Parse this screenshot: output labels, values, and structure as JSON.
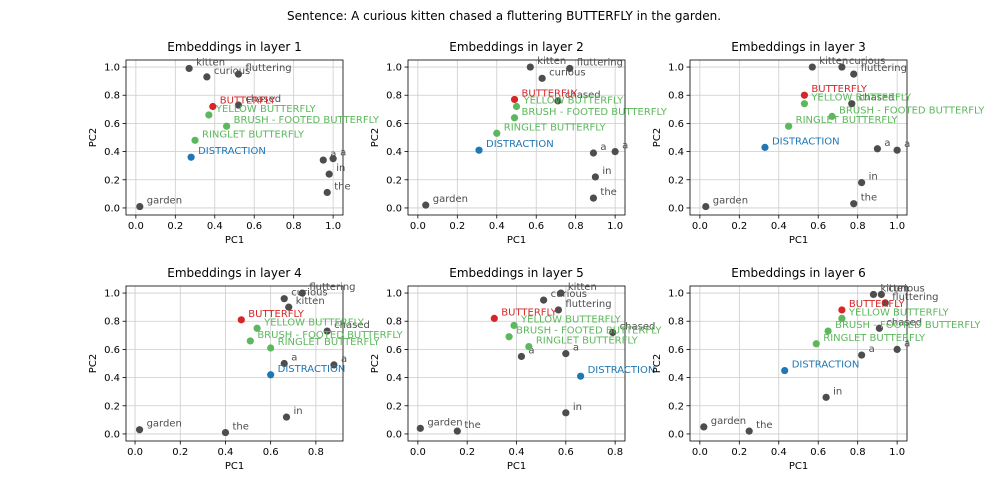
{
  "suptitle": "Sentence: A curious kitten chased a fluttering BUTTERFLY in the garden.",
  "colors": {
    "token": "#4d4d4d",
    "target": "#d62728",
    "related": "#5cb85c",
    "distractor": "#1f77b4",
    "grid": "#cccccc"
  },
  "chart_data": [
    {
      "type": "scatter",
      "title": "Embeddings in layer 1",
      "xlabel": "PC1",
      "ylabel": "PC2",
      "xticks": [
        "0.0",
        "0.2",
        "0.4",
        "0.6",
        "0.8",
        "1.0"
      ],
      "yticks": [
        "0.0",
        "0.2",
        "0.4",
        "0.6",
        "0.8",
        "1.0"
      ],
      "xlim": [
        -0.05,
        1.05
      ],
      "ylim": [
        -0.05,
        1.05
      ],
      "grid": true,
      "points": [
        {
          "label": "garden",
          "x": 0.02,
          "y": 0.01,
          "group": "token"
        },
        {
          "label": "kitten",
          "x": 0.27,
          "y": 0.99,
          "group": "token"
        },
        {
          "label": "curious",
          "x": 0.36,
          "y": 0.93,
          "group": "token"
        },
        {
          "label": "fluttering",
          "x": 0.52,
          "y": 0.95,
          "group": "token"
        },
        {
          "label": "chased",
          "x": 0.52,
          "y": 0.73,
          "group": "token"
        },
        {
          "label": "a",
          "x": 0.95,
          "y": 0.34,
          "group": "token"
        },
        {
          "label": "a",
          "x": 1.0,
          "y": 0.35,
          "group": "token"
        },
        {
          "label": "in",
          "x": 0.98,
          "y": 0.24,
          "group": "token"
        },
        {
          "label": "the",
          "x": 0.97,
          "y": 0.11,
          "group": "token"
        },
        {
          "label": "BUTTERFLY",
          "x": 0.39,
          "y": 0.72,
          "group": "target"
        },
        {
          "label": "YELLOW BUTTERFLY",
          "x": 0.37,
          "y": 0.66,
          "group": "related"
        },
        {
          "label": "BRUSH - FOOTED BUTTERFLY",
          "x": 0.46,
          "y": 0.58,
          "group": "related"
        },
        {
          "label": "RINGLET BUTTERFLY",
          "x": 0.3,
          "y": 0.48,
          "group": "related"
        },
        {
          "label": "DISTRACTION",
          "x": 0.28,
          "y": 0.36,
          "group": "distractor"
        }
      ]
    },
    {
      "type": "scatter",
      "title": "Embeddings in layer 2",
      "xlabel": "PC1",
      "ylabel": "PC2",
      "xticks": [
        "0.0",
        "0.2",
        "0.4",
        "0.6",
        "0.8",
        "1.0"
      ],
      "yticks": [
        "0.0",
        "0.2",
        "0.4",
        "0.6",
        "0.8",
        "1.0"
      ],
      "xlim": [
        -0.05,
        1.05
      ],
      "ylim": [
        -0.05,
        1.05
      ],
      "grid": true,
      "points": [
        {
          "label": "garden",
          "x": 0.04,
          "y": 0.02,
          "group": "token"
        },
        {
          "label": "kitten",
          "x": 0.57,
          "y": 1.0,
          "group": "token"
        },
        {
          "label": "fluttering",
          "x": 0.77,
          "y": 0.99,
          "group": "token"
        },
        {
          "label": "curious",
          "x": 0.63,
          "y": 0.92,
          "group": "token"
        },
        {
          "label": "chased",
          "x": 0.71,
          "y": 0.76,
          "group": "token"
        },
        {
          "label": "a",
          "x": 0.89,
          "y": 0.39,
          "group": "token"
        },
        {
          "label": "a",
          "x": 1.0,
          "y": 0.4,
          "group": "token"
        },
        {
          "label": "in",
          "x": 0.9,
          "y": 0.22,
          "group": "token"
        },
        {
          "label": "the",
          "x": 0.89,
          "y": 0.07,
          "group": "token"
        },
        {
          "label": "BUTTERFLY",
          "x": 0.49,
          "y": 0.77,
          "group": "target"
        },
        {
          "label": "YELLOW BUTTERFLY",
          "x": 0.5,
          "y": 0.72,
          "group": "related"
        },
        {
          "label": "BRUSH - FOOTED BUTTERFLY",
          "x": 0.49,
          "y": 0.64,
          "group": "related"
        },
        {
          "label": "RINGLET BUTTERFLY",
          "x": 0.4,
          "y": 0.53,
          "group": "related"
        },
        {
          "label": "DISTRACTION",
          "x": 0.31,
          "y": 0.41,
          "group": "distractor"
        }
      ]
    },
    {
      "type": "scatter",
      "title": "Embeddings in layer 3",
      "xlabel": "PC1",
      "ylabel": "PC2",
      "xticks": [
        "0.0",
        "0.2",
        "0.4",
        "0.6",
        "0.8",
        "1.0"
      ],
      "yticks": [
        "0.0",
        "0.2",
        "0.4",
        "0.6",
        "0.8",
        "1.0"
      ],
      "xlim": [
        -0.05,
        1.05
      ],
      "ylim": [
        -0.05,
        1.05
      ],
      "grid": true,
      "points": [
        {
          "label": "garden",
          "x": 0.03,
          "y": 0.01,
          "group": "token"
        },
        {
          "label": "kitten",
          "x": 0.57,
          "y": 1.0,
          "group": "token"
        },
        {
          "label": "curious",
          "x": 0.72,
          "y": 1.0,
          "group": "token"
        },
        {
          "label": "fluttering",
          "x": 0.78,
          "y": 0.95,
          "group": "token"
        },
        {
          "label": "chased",
          "x": 0.77,
          "y": 0.74,
          "group": "token"
        },
        {
          "label": "a",
          "x": 0.9,
          "y": 0.42,
          "group": "token"
        },
        {
          "label": "a",
          "x": 1.0,
          "y": 0.41,
          "group": "token"
        },
        {
          "label": "in",
          "x": 0.82,
          "y": 0.18,
          "group": "token"
        },
        {
          "label": "the",
          "x": 0.78,
          "y": 0.03,
          "group": "token"
        },
        {
          "label": "BUTTERFLY",
          "x": 0.53,
          "y": 0.8,
          "group": "target"
        },
        {
          "label": "YELLOW BUTTERFLY",
          "x": 0.53,
          "y": 0.74,
          "group": "related"
        },
        {
          "label": "BRUSH - FOOTED BUTTERFLY",
          "x": 0.67,
          "y": 0.65,
          "group": "related"
        },
        {
          "label": "RINGLET BUTTERFLY",
          "x": 0.45,
          "y": 0.58,
          "group": "related"
        },
        {
          "label": "DISTRACTION",
          "x": 0.33,
          "y": 0.43,
          "group": "distractor"
        }
      ]
    },
    {
      "type": "scatter",
      "title": "Embeddings in layer 4",
      "xlabel": "PC1",
      "ylabel": "PC2",
      "xticks": [
        "0.0",
        "0.2",
        "0.4",
        "0.6",
        "0.8"
      ],
      "yticks": [
        "0.0",
        "0.2",
        "0.4",
        "0.6",
        "0.8",
        "1.0"
      ],
      "xlim": [
        -0.04,
        0.92
      ],
      "ylim": [
        -0.05,
        1.05
      ],
      "grid": true,
      "points": [
        {
          "label": "garden",
          "x": 0.02,
          "y": 0.03,
          "group": "token"
        },
        {
          "label": "the",
          "x": 0.4,
          "y": 0.01,
          "group": "token"
        },
        {
          "label": "in",
          "x": 0.67,
          "y": 0.12,
          "group": "token"
        },
        {
          "label": "fluttering",
          "x": 0.74,
          "y": 1.0,
          "group": "token"
        },
        {
          "label": "curious",
          "x": 0.66,
          "y": 0.96,
          "group": "token"
        },
        {
          "label": "kitten",
          "x": 0.68,
          "y": 0.9,
          "group": "token"
        },
        {
          "label": "chased",
          "x": 0.85,
          "y": 0.73,
          "group": "token"
        },
        {
          "label": "a",
          "x": 0.66,
          "y": 0.5,
          "group": "token"
        },
        {
          "label": "a",
          "x": 0.88,
          "y": 0.49,
          "group": "token"
        },
        {
          "label": "BUTTERFLY",
          "x": 0.47,
          "y": 0.81,
          "group": "target"
        },
        {
          "label": "YELLOW BUTTERFLY",
          "x": 0.54,
          "y": 0.75,
          "group": "related"
        },
        {
          "label": "BRUSH - FOOTED BUTTERFLY",
          "x": 0.51,
          "y": 0.66,
          "group": "related"
        },
        {
          "label": "RINGLET BUTTERFLY",
          "x": 0.6,
          "y": 0.61,
          "group": "related"
        },
        {
          "label": "DISTRACTION",
          "x": 0.6,
          "y": 0.42,
          "group": "distractor"
        }
      ]
    },
    {
      "type": "scatter",
      "title": "Embeddings in layer 5",
      "xlabel": "PC1",
      "ylabel": "PC2",
      "xticks": [
        "0.0",
        "0.2",
        "0.4",
        "0.6",
        "0.8"
      ],
      "yticks": [
        "0.0",
        "0.2",
        "0.4",
        "0.6",
        "0.8",
        "1.0"
      ],
      "xlim": [
        -0.04,
        0.84
      ],
      "ylim": [
        -0.05,
        1.05
      ],
      "grid": true,
      "points": [
        {
          "label": "garden",
          "x": 0.01,
          "y": 0.04,
          "group": "token"
        },
        {
          "label": "the",
          "x": 0.16,
          "y": 0.02,
          "group": "token"
        },
        {
          "label": "in",
          "x": 0.6,
          "y": 0.15,
          "group": "token"
        },
        {
          "label": "kitten",
          "x": 0.58,
          "y": 1.0,
          "group": "token"
        },
        {
          "label": "curious",
          "x": 0.51,
          "y": 0.95,
          "group": "token"
        },
        {
          "label": "fluttering",
          "x": 0.57,
          "y": 0.88,
          "group": "token"
        },
        {
          "label": "chased",
          "x": 0.79,
          "y": 0.72,
          "group": "token"
        },
        {
          "label": "a",
          "x": 0.42,
          "y": 0.55,
          "group": "token"
        },
        {
          "label": "a",
          "x": 0.6,
          "y": 0.57,
          "group": "token"
        },
        {
          "label": "BUTTERFLY",
          "x": 0.31,
          "y": 0.82,
          "group": "target"
        },
        {
          "label": "YELLOW BUTTERFLY",
          "x": 0.39,
          "y": 0.77,
          "group": "related"
        },
        {
          "label": "BRUSH - FOOTED BUTTERFLY",
          "x": 0.37,
          "y": 0.69,
          "group": "related"
        },
        {
          "label": "RINGLET BUTTERFLY",
          "x": 0.45,
          "y": 0.62,
          "group": "related"
        },
        {
          "label": "DISTRACTION",
          "x": 0.66,
          "y": 0.41,
          "group": "distractor"
        }
      ]
    },
    {
      "type": "scatter",
      "title": "Embeddings in layer 6",
      "xlabel": "PC1",
      "ylabel": "PC2",
      "xticks": [
        "0.0",
        "0.2",
        "0.4",
        "0.6",
        "0.8",
        "1.0"
      ],
      "yticks": [
        "0.0",
        "0.2",
        "0.4",
        "0.6",
        "0.8",
        "1.0"
      ],
      "xlim": [
        -0.05,
        1.05
      ],
      "ylim": [
        -0.05,
        1.05
      ],
      "grid": true,
      "points": [
        {
          "label": "garden",
          "x": 0.02,
          "y": 0.05,
          "group": "token"
        },
        {
          "label": "the",
          "x": 0.25,
          "y": 0.02,
          "group": "token"
        },
        {
          "label": "in",
          "x": 0.64,
          "y": 0.26,
          "group": "token"
        },
        {
          "label": "kitten",
          "x": 0.88,
          "y": 0.99,
          "group": "token"
        },
        {
          "label": "curious",
          "x": 0.92,
          "y": 0.99,
          "group": "token"
        },
        {
          "label": "fluttering",
          "x": 0.94,
          "y": 0.93,
          "group": "token"
        },
        {
          "label": "chased",
          "x": 0.91,
          "y": 0.75,
          "group": "token"
        },
        {
          "label": "a",
          "x": 0.82,
          "y": 0.56,
          "group": "token"
        },
        {
          "label": "a",
          "x": 1.0,
          "y": 0.6,
          "group": "token"
        },
        {
          "label": "BUTTERFLY",
          "x": 0.72,
          "y": 0.88,
          "group": "target"
        },
        {
          "label": "YELLOW BUTTERFLY",
          "x": 0.72,
          "y": 0.82,
          "group": "related"
        },
        {
          "label": "BRUSH - FOOTED BUTTERFLY",
          "x": 0.65,
          "y": 0.73,
          "group": "related"
        },
        {
          "label": "RINGLET BUTTERFLY",
          "x": 0.59,
          "y": 0.64,
          "group": "related"
        },
        {
          "label": "DISTRACTION",
          "x": 0.43,
          "y": 0.45,
          "group": "distractor"
        }
      ]
    }
  ]
}
